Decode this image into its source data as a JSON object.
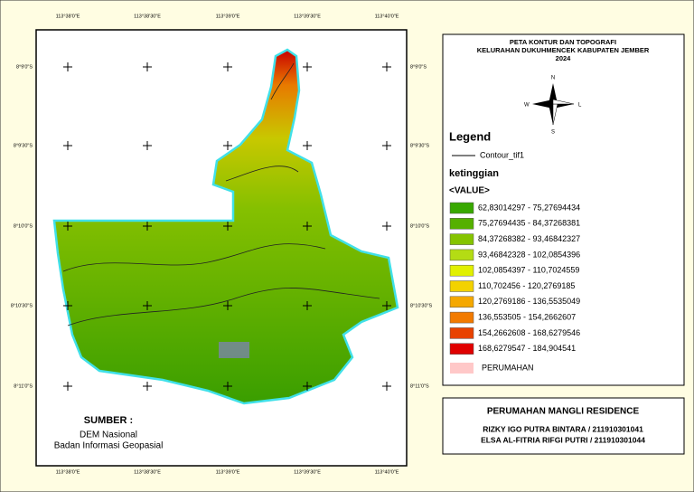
{
  "map": {
    "lon_labels": [
      "113°38'0\"E",
      "113°38'30\"E",
      "113°39'0\"E",
      "113°39'30\"E",
      "113°40'0\"E"
    ],
    "lat_labels": [
      "8°9'0\"S",
      "8°9'30\"S",
      "8°10'0\"S",
      "8°10'30\"S",
      "8°11'0\"S"
    ],
    "source": {
      "heading": "SUMBER :",
      "lines": [
        "DEM Nasional",
        "Badan Informasi Geopasial"
      ]
    }
  },
  "title": {
    "lines": [
      "PETA KONTUR DAN TOPOGRAFI",
      "KELURAHAN DUKUHMENCEK KABUPATEN JEMBER",
      "2024"
    ]
  },
  "compass": {
    "n": "N",
    "s": "S",
    "e": "L",
    "w": "W"
  },
  "legend": {
    "title": "Legend",
    "contour": "Contour_tif1",
    "field": "ketinggian",
    "value_header": "<VALUE>",
    "classes": [
      {
        "label": "62,83014297 - 75,27694434",
        "color": "#38a800"
      },
      {
        "label": "75,27694435 - 84,37268381",
        "color": "#55b000"
      },
      {
        "label": "84,37268382 - 93,46842327",
        "color": "#85c400"
      },
      {
        "label": "93,46842328 - 102,0854396",
        "color": "#b4dc14"
      },
      {
        "label": "102,0854397 - 110,7024559",
        "color": "#e1f000"
      },
      {
        "label": "110,702456 - 120,2769185",
        "color": "#f3d200"
      },
      {
        "label": "120,2769186 - 136,5535049",
        "color": "#f5a800"
      },
      {
        "label": "136,553505 - 154,2662607",
        "color": "#f27a00"
      },
      {
        "label": "154,2662608 - 168,6279546",
        "color": "#e84200"
      },
      {
        "label": "168,6279547 - 184,904541",
        "color": "#e00000"
      }
    ],
    "extra": {
      "label": "PERUMAHAN",
      "color": "#ffc8c8"
    }
  },
  "footer": {
    "heading": "PERUMAHAN MANGLI RESIDENCE",
    "authors": [
      "RIZKY IGO PUTRA BINTARA / 211910301041",
      "ELSA AL-FITRIA RIFGI PUTRI / 211910301044"
    ]
  }
}
